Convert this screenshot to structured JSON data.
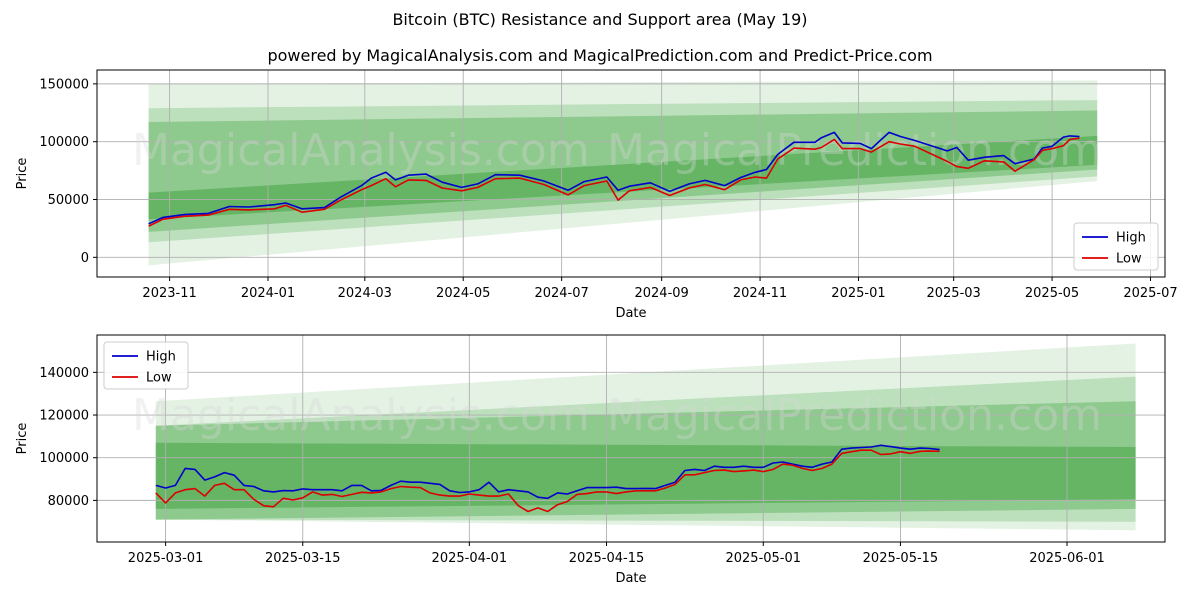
{
  "header": {
    "title": "Bitcoin (BTC) Resistance and Support area (May 19)",
    "subtitle": "powered by MagicalAnalysis.com and MagicalPrediction.com and Predict-Price.com"
  },
  "watermarks": [
    "MagicalAnalysis.com",
    "MagicalPrediction.com"
  ],
  "colors": {
    "high": "#0000cc",
    "low": "#dd0000",
    "band": "#2e9a2e",
    "grid": "#b0b0b0"
  },
  "chart_data": [
    {
      "type": "line",
      "xlabel": "Date",
      "ylabel": "Price",
      "xlim": [
        "2023-09-17",
        "2025-07-10"
      ],
      "ylim": [
        -17000,
        162000
      ],
      "x_ticks": [
        "2023-11",
        "2024-01",
        "2024-03",
        "2024-05",
        "2024-07",
        "2024-09",
        "2024-11",
        "2025-01",
        "2025-03",
        "2025-05",
        "2025-07"
      ],
      "x_tick_dates": [
        "2023-11-01",
        "2024-01-01",
        "2024-03-01",
        "2024-05-01",
        "2024-07-01",
        "2024-09-01",
        "2024-11-01",
        "2025-01-01",
        "2025-03-01",
        "2025-05-01",
        "2025-07-01"
      ],
      "y_ticks": [
        0,
        50000,
        100000,
        150000
      ],
      "y_tick_labels": [
        "0",
        "50000",
        "100000",
        "150000"
      ],
      "grid": true,
      "legend_position": "lower right",
      "bands": {
        "start": "2023-10-19",
        "end": "2025-05-29",
        "layers": [
          {
            "opacity": 0.13,
            "upper": [
              150000,
              153000
            ],
            "lower": [
              -7000,
              66000
            ]
          },
          {
            "opacity": 0.22,
            "upper": [
              129000,
              136000
            ],
            "lower": [
              13000,
              70000
            ]
          },
          {
            "opacity": 0.32,
            "upper": [
              117000,
              127000
            ],
            "lower": [
              22000,
              76000
            ]
          },
          {
            "opacity": 0.42,
            "upper": [
              56000,
              105000
            ],
            "lower": [
              33000,
              80000
            ]
          }
        ]
      },
      "series": [
        {
          "name": "High",
          "x": [
            "2023-10-19",
            "2023-10-28",
            "2023-11-10",
            "2023-11-25",
            "2023-12-08",
            "2023-12-20",
            "2024-01-05",
            "2024-01-12",
            "2024-01-22",
            "2024-02-05",
            "2024-02-15",
            "2024-02-28",
            "2024-03-05",
            "2024-03-14",
            "2024-03-20",
            "2024-03-28",
            "2024-04-08",
            "2024-04-18",
            "2024-04-30",
            "2024-05-10",
            "2024-05-21",
            "2024-06-05",
            "2024-06-20",
            "2024-07-05",
            "2024-07-15",
            "2024-07-29",
            "2024-08-05",
            "2024-08-12",
            "2024-08-25",
            "2024-09-06",
            "2024-09-18",
            "2024-09-28",
            "2024-10-10",
            "2024-10-20",
            "2024-10-29",
            "2024-11-05",
            "2024-11-12",
            "2024-11-22",
            "2024-12-05",
            "2024-12-09",
            "2024-12-17",
            "2024-12-22",
            "2025-01-02",
            "2025-01-09",
            "2025-01-20",
            "2025-01-27",
            "2025-02-05",
            "2025-02-25",
            "2025-03-03",
            "2025-03-10",
            "2025-03-20",
            "2025-04-01",
            "2025-04-08",
            "2025-04-20",
            "2025-04-25",
            "2025-05-01",
            "2025-05-08",
            "2025-05-12",
            "2025-05-18"
          ],
          "y": [
            29000,
            34500,
            37000,
            38000,
            44000,
            43500,
            45500,
            47000,
            42000,
            43000,
            52000,
            62000,
            68500,
            73500,
            67000,
            71000,
            72000,
            65000,
            60500,
            63500,
            71500,
            71000,
            66000,
            58000,
            65500,
            69500,
            58000,
            61500,
            64500,
            57000,
            63500,
            66500,
            62000,
            69000,
            73500,
            76000,
            89000,
            99500,
            99500,
            103500,
            108000,
            99000,
            98500,
            94000,
            108000,
            104500,
            101000,
            92000,
            95000,
            84000,
            86500,
            88000,
            81000,
            85000,
            94500,
            96000,
            104000,
            105000,
            104500
          ]
        },
        {
          "name": "Low",
          "x": [
            "2023-10-19",
            "2023-10-28",
            "2023-11-10",
            "2023-11-25",
            "2023-12-08",
            "2023-12-20",
            "2024-01-05",
            "2024-01-12",
            "2024-01-22",
            "2024-02-05",
            "2024-02-15",
            "2024-02-28",
            "2024-03-05",
            "2024-03-14",
            "2024-03-20",
            "2024-03-28",
            "2024-04-08",
            "2024-04-18",
            "2024-04-30",
            "2024-05-10",
            "2024-05-21",
            "2024-06-05",
            "2024-06-20",
            "2024-07-05",
            "2024-07-15",
            "2024-07-29",
            "2024-08-05",
            "2024-08-12",
            "2024-08-25",
            "2024-09-06",
            "2024-09-18",
            "2024-09-28",
            "2024-10-10",
            "2024-10-20",
            "2024-10-29",
            "2024-11-05",
            "2024-11-12",
            "2024-11-22",
            "2024-12-05",
            "2024-12-09",
            "2024-12-17",
            "2024-12-22",
            "2025-01-02",
            "2025-01-09",
            "2025-01-20",
            "2025-01-27",
            "2025-02-05",
            "2025-02-25",
            "2025-03-03",
            "2025-03-10",
            "2025-03-20",
            "2025-04-01",
            "2025-04-08",
            "2025-04-20",
            "2025-04-25",
            "2025-05-01",
            "2025-05-08",
            "2025-05-12",
            "2025-05-18"
          ],
          "y": [
            27000,
            33000,
            35500,
            36500,
            41500,
            41000,
            42000,
            45000,
            39000,
            41500,
            49500,
            58500,
            62000,
            68000,
            61000,
            67000,
            66500,
            60000,
            57500,
            60500,
            68000,
            68500,
            63000,
            54000,
            62000,
            66000,
            49500,
            57500,
            60500,
            53500,
            60000,
            63000,
            58500,
            67000,
            69500,
            68500,
            85000,
            94500,
            93500,
            95000,
            102000,
            94000,
            94000,
            91000,
            100000,
            98000,
            96000,
            83000,
            78500,
            77000,
            83500,
            82500,
            74500,
            84500,
            92500,
            94000,
            96500,
            102000,
            103000
          ]
        }
      ]
    },
    {
      "type": "line",
      "xlabel": "Date",
      "ylabel": "Price",
      "xlim": [
        "2025-02-22",
        "2025-06-11"
      ],
      "ylim": [
        60500,
        157500
      ],
      "x_ticks": [
        "2025-03-01",
        "2025-03-15",
        "2025-04-01",
        "2025-04-15",
        "2025-05-01",
        "2025-05-15",
        "2025-06-01"
      ],
      "y_ticks": [
        80000,
        100000,
        120000,
        140000
      ],
      "y_tick_labels": [
        "80000",
        "100000",
        "120000",
        "140000"
      ],
      "grid": true,
      "legend_position": "upper left",
      "bands": {
        "start": "2025-02-28",
        "end": "2025-06-08",
        "layers": [
          {
            "opacity": 0.13,
            "upper": [
              126500,
              153500
            ],
            "lower": [
              71000,
              66000
            ]
          },
          {
            "opacity": 0.22,
            "upper": [
              115000,
              138000
            ],
            "lower": [
              71000,
              70000
            ]
          },
          {
            "opacity": 0.32,
            "upper": [
              115000,
              126500
            ],
            "lower": [
              71000,
              76000
            ]
          },
          {
            "opacity": 0.42,
            "upper": [
              107000,
              105000
            ],
            "lower": [
              76000,
              80500
            ]
          }
        ]
      },
      "series": [
        {
          "name": "High",
          "x": [
            "2025-02-28",
            "2025-03-01",
            "2025-03-02",
            "2025-03-03",
            "2025-03-04",
            "2025-03-05",
            "2025-03-06",
            "2025-03-07",
            "2025-03-08",
            "2025-03-09",
            "2025-03-10",
            "2025-03-11",
            "2025-03-12",
            "2025-03-13",
            "2025-03-14",
            "2025-03-15",
            "2025-03-16",
            "2025-03-17",
            "2025-03-18",
            "2025-03-19",
            "2025-03-20",
            "2025-03-21",
            "2025-03-22",
            "2025-03-23",
            "2025-03-24",
            "2025-03-25",
            "2025-03-26",
            "2025-03-27",
            "2025-03-28",
            "2025-03-29",
            "2025-03-30",
            "2025-03-31",
            "2025-04-01",
            "2025-04-02",
            "2025-04-03",
            "2025-04-04",
            "2025-04-05",
            "2025-04-06",
            "2025-04-07",
            "2025-04-08",
            "2025-04-09",
            "2025-04-10",
            "2025-04-11",
            "2025-04-12",
            "2025-04-13",
            "2025-04-14",
            "2025-04-15",
            "2025-04-16",
            "2025-04-17",
            "2025-04-18",
            "2025-04-19",
            "2025-04-20",
            "2025-04-21",
            "2025-04-22",
            "2025-04-23",
            "2025-04-24",
            "2025-04-25",
            "2025-04-26",
            "2025-04-27",
            "2025-04-28",
            "2025-04-29",
            "2025-04-30",
            "2025-05-01",
            "2025-05-02",
            "2025-05-03",
            "2025-05-04",
            "2025-05-05",
            "2025-05-06",
            "2025-05-07",
            "2025-05-08",
            "2025-05-09",
            "2025-05-10",
            "2025-05-11",
            "2025-05-12",
            "2025-05-13",
            "2025-05-14",
            "2025-05-15",
            "2025-05-16",
            "2025-05-17",
            "2025-05-18",
            "2025-05-19"
          ],
          "y": [
            87000,
            85800,
            87000,
            95000,
            94500,
            89500,
            91000,
            93000,
            91800,
            87000,
            86500,
            84500,
            84000,
            84600,
            84500,
            85400,
            85000,
            85000,
            85000,
            84500,
            87000,
            87000,
            84500,
            84700,
            87000,
            89000,
            88500,
            88500,
            88000,
            87500,
            84500,
            83700,
            84000,
            85000,
            88500,
            84000,
            85000,
            84500,
            84000,
            81500,
            81000,
            83500,
            83000,
            84500,
            86000,
            86000,
            86000,
            86200,
            85500,
            85500,
            85600,
            85500,
            87000,
            88500,
            94000,
            94500,
            94000,
            96000,
            95500,
            95500,
            96000,
            95500,
            95500,
            97500,
            98000,
            97000,
            96000,
            95500,
            97000,
            98000,
            104000,
            104500,
            104800,
            105000,
            105800,
            105200,
            104500,
            104000,
            104500,
            104300,
            103800
          ]
        },
        {
          "name": "Low",
          "x": [
            "2025-02-28",
            "2025-03-01",
            "2025-03-02",
            "2025-03-03",
            "2025-03-04",
            "2025-03-05",
            "2025-03-06",
            "2025-03-07",
            "2025-03-08",
            "2025-03-09",
            "2025-03-10",
            "2025-03-11",
            "2025-03-12",
            "2025-03-13",
            "2025-03-14",
            "2025-03-15",
            "2025-03-16",
            "2025-03-17",
            "2025-03-18",
            "2025-03-19",
            "2025-03-20",
            "2025-03-21",
            "2025-03-22",
            "2025-03-23",
            "2025-03-24",
            "2025-03-25",
            "2025-03-26",
            "2025-03-27",
            "2025-03-28",
            "2025-03-29",
            "2025-03-30",
            "2025-03-31",
            "2025-04-01",
            "2025-04-02",
            "2025-04-03",
            "2025-04-04",
            "2025-04-05",
            "2025-04-06",
            "2025-04-07",
            "2025-04-08",
            "2025-04-09",
            "2025-04-10",
            "2025-04-11",
            "2025-04-12",
            "2025-04-13",
            "2025-04-14",
            "2025-04-15",
            "2025-04-16",
            "2025-04-17",
            "2025-04-18",
            "2025-04-19",
            "2025-04-20",
            "2025-04-21",
            "2025-04-22",
            "2025-04-23",
            "2025-04-24",
            "2025-04-25",
            "2025-04-26",
            "2025-04-27",
            "2025-04-28",
            "2025-04-29",
            "2025-04-30",
            "2025-05-01",
            "2025-05-02",
            "2025-05-03",
            "2025-05-04",
            "2025-05-05",
            "2025-05-06",
            "2025-05-07",
            "2025-05-08",
            "2025-05-09",
            "2025-05-10",
            "2025-05-11",
            "2025-05-12",
            "2025-05-13",
            "2025-05-14",
            "2025-05-15",
            "2025-05-16",
            "2025-05-17",
            "2025-05-18",
            "2025-05-19"
          ],
          "y": [
            83500,
            78800,
            83500,
            85000,
            85500,
            82000,
            87000,
            88000,
            85000,
            85000,
            80500,
            77500,
            77000,
            81000,
            80200,
            81200,
            84000,
            82500,
            82800,
            81800,
            82800,
            83800,
            83500,
            84000,
            85500,
            86500,
            86200,
            86000,
            83500,
            82500,
            82000,
            82000,
            83000,
            82500,
            82000,
            82000,
            83000,
            77500,
            74800,
            76500,
            74800,
            78000,
            79500,
            82800,
            83200,
            84000,
            84000,
            83200,
            84000,
            84500,
            84500,
            84500,
            85800,
            87500,
            92000,
            92000,
            93000,
            94000,
            94200,
            93500,
            93800,
            94200,
            93500,
            94500,
            97000,
            96500,
            95000,
            94000,
            95000,
            97000,
            102000,
            102800,
            103500,
            103500,
            101500,
            101800,
            102800,
            102000,
            103000,
            103100,
            103000
          ]
        }
      ]
    }
  ]
}
